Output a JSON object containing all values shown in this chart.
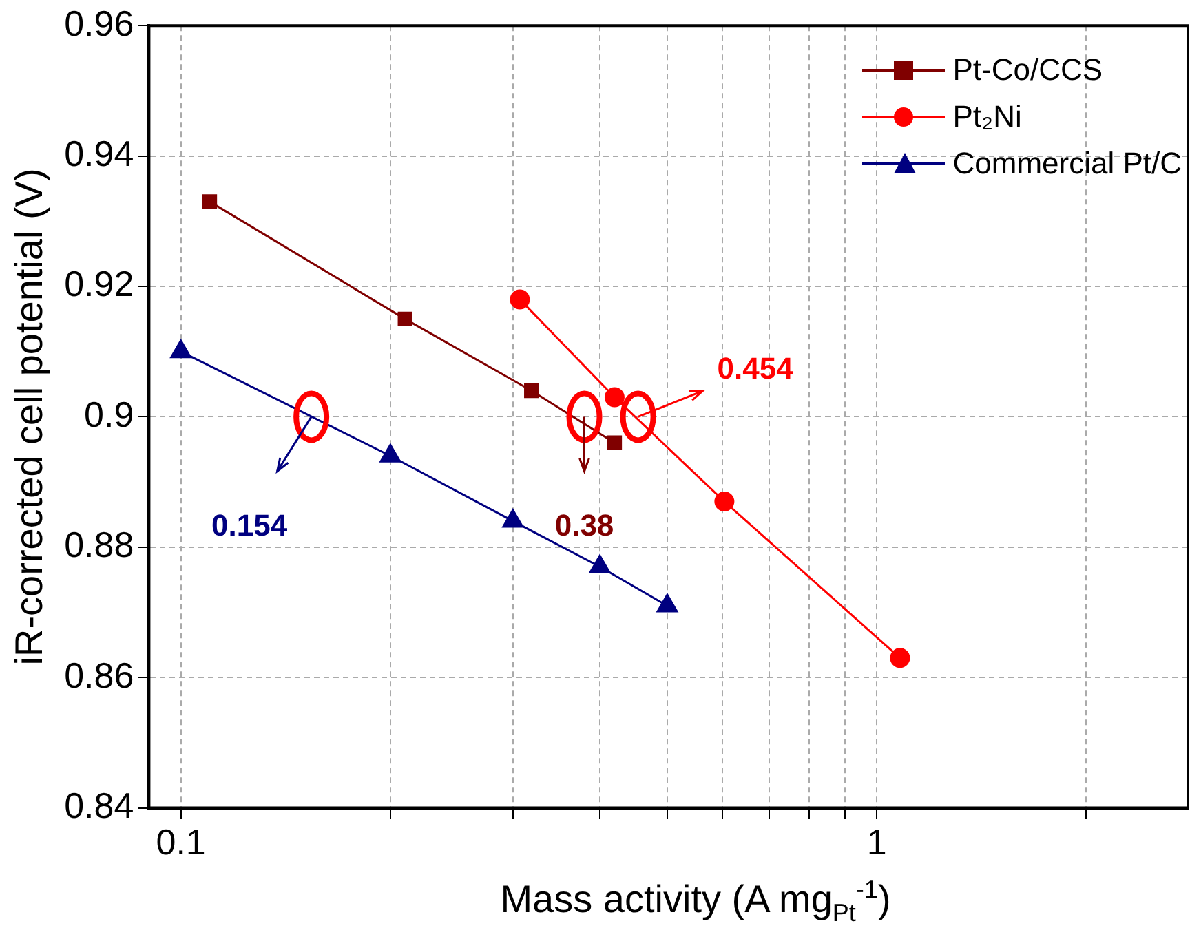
{
  "chart_data": {
    "type": "line",
    "xlabel": "Mass activity (A mg$_{Pt}$$^{-1}$)",
    "ylabel": "iR-corrected cell potential (V)",
    "log": "x",
    "grid": true,
    "legend": "top right",
    "line_style": "solid",
    "xlim": [
      0.09,
      2.8
    ],
    "xticks": [
      0.1,
      {
        "value": 0.2,
        "label": null
      },
      {
        "value": 0.3,
        "label": null
      },
      {
        "value": 0.4,
        "label": null
      },
      {
        "value": 0.5,
        "label": null
      },
      {
        "value": 0.6,
        "label": null
      },
      {
        "value": 0.7,
        "label": null
      },
      {
        "value": 0.8,
        "label": null
      },
      {
        "value": 0.9,
        "label": null
      },
      1,
      {
        "value": 2,
        "label": null
      }
    ],
    "ylim": [
      0.84,
      0.96
    ],
    "yticks": [
      0.84,
      0.86,
      0.88,
      0.9,
      0.92,
      0.94,
      0.96
    ],
    "series": [
      {
        "name": "Pt-Co/CCS",
        "color": "#800000",
        "marker": "square",
        "x": [
          0.11,
          0.21,
          0.319,
          0.42
        ],
        "values": [
          0.933,
          0.915,
          0.904,
          0.896
        ]
      },
      {
        "name": "Pt₂Ni",
        "color": "#ff0000",
        "marker": "circle",
        "x": [
          0.307,
          0.42,
          0.604,
          1.08
        ],
        "values": [
          0.918,
          0.903,
          0.887,
          0.863
        ]
      },
      {
        "name": "Commercial Pt/C",
        "color": "#000080",
        "marker": "triangle",
        "x": [
          0.1,
          0.2,
          0.3,
          0.4,
          0.5
        ],
        "values": [
          0.91,
          0.894,
          0.884,
          0.877,
          0.871
        ]
      }
    ],
    "annotations": [
      {
        "text": "0.154",
        "x": 0.154,
        "y": 0.9
      },
      {
        "text": "0.38",
        "x": 0.38,
        "y": 0.9
      },
      {
        "text": "0.454",
        "x": 0.454,
        "y": 0.9
      }
    ]
  }
}
